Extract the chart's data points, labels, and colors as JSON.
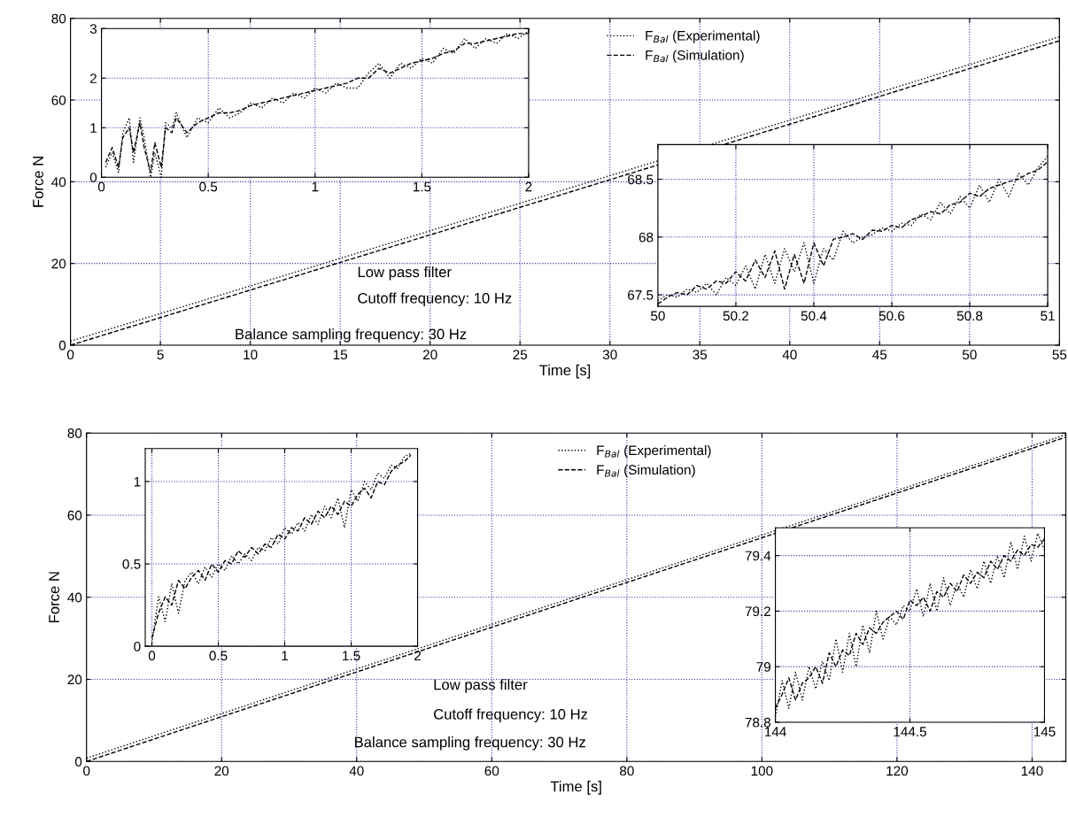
{
  "chart_data": [
    {
      "type": "line",
      "xlabel": "Time [s]",
      "ylabel": "Force N",
      "xlim": [
        0,
        55
      ],
      "ylim": [
        0,
        80
      ],
      "xticks": [
        0,
        5,
        10,
        15,
        20,
        25,
        30,
        35,
        40,
        45,
        50,
        55
      ],
      "yticks": [
        0,
        20,
        40,
        60,
        80
      ],
      "grid": true,
      "legend": "top",
      "x": [
        0,
        30,
        55
      ],
      "series": [
        {
          "name": "F$_{Bal}$ (Experimental)",
          "color": "#000000",
          "line_style": "dotted",
          "values": [
            1,
            41.5,
            75.5
          ]
        },
        {
          "name": "F$_{Bal}$ (Simulation)",
          "color": "#000000",
          "line_style": "dashed",
          "values": [
            0,
            40.5,
            74.5
          ]
        }
      ],
      "annotations": [
        "Low pass filter",
        "Cutoff frequency: 10 Hz",
        "Balance sampling frequency: 30 Hz"
      ]
    },
    {
      "type": "line",
      "xlim": [
        0,
        2
      ],
      "ylim": [
        0,
        3
      ],
      "xticks": [
        0,
        0.5,
        1,
        1.5,
        2
      ],
      "yticks": [
        0,
        1,
        2,
        3
      ],
      "grid": true,
      "x": [
        0.02,
        0.05,
        0.08,
        0.1,
        0.13,
        0.15,
        0.18,
        0.2,
        0.23,
        0.25,
        0.28,
        0.3,
        0.33,
        0.35,
        0.4,
        0.45,
        0.5,
        0.55,
        0.6,
        0.65,
        0.7,
        0.75,
        0.8,
        0.85,
        0.9,
        0.95,
        1.0,
        1.05,
        1.1,
        1.15,
        1.2,
        1.25,
        1.3,
        1.35,
        1.4,
        1.45,
        1.5,
        1.55,
        1.6,
        1.65,
        1.7,
        1.75,
        1.8,
        1.85,
        1.9,
        1.95,
        2.0
      ],
      "series": [
        {
          "color": "#000000",
          "line_style": "dotted",
          "values": [
            0.2,
            0.5,
            0.1,
            0.9,
            1.2,
            0.3,
            1.2,
            0.8,
            0.0,
            0.5,
            0.0,
            1.1,
            1.0,
            1.3,
            0.8,
            1.2,
            1.1,
            1.4,
            1.2,
            1.3,
            1.5,
            1.4,
            1.6,
            1.5,
            1.7,
            1.6,
            1.8,
            1.7,
            1.9,
            1.8,
            1.8,
            2.1,
            2.3,
            2.0,
            2.3,
            2.2,
            2.4,
            2.3,
            2.6,
            2.5,
            2.8,
            2.6,
            2.8,
            2.7,
            2.9,
            2.8,
            2.95
          ]
        },
        {
          "color": "#000000",
          "line_style": "dashed",
          "values": [
            0.3,
            0.6,
            0.2,
            0.8,
            1.0,
            0.5,
            1.1,
            0.6,
            0.1,
            0.7,
            0.2,
            1.0,
            0.9,
            1.2,
            0.9,
            1.1,
            1.2,
            1.3,
            1.3,
            1.35,
            1.45,
            1.5,
            1.55,
            1.6,
            1.65,
            1.7,
            1.75,
            1.8,
            1.85,
            1.9,
            2.0,
            2.0,
            2.2,
            2.1,
            2.2,
            2.3,
            2.35,
            2.4,
            2.5,
            2.55,
            2.7,
            2.7,
            2.75,
            2.8,
            2.85,
            2.9,
            2.9
          ]
        }
      ]
    },
    {
      "type": "line",
      "xlim": [
        50,
        51
      ],
      "ylim": [
        67.4,
        68.8
      ],
      "xticks": [
        50,
        50.2,
        50.4,
        50.6,
        50.8,
        51
      ],
      "yticks": [
        67.5,
        68,
        68.5
      ],
      "grid": true,
      "x": [
        50,
        50.025,
        50.05,
        50.075,
        50.1,
        50.125,
        50.15,
        50.175,
        50.2,
        50.225,
        50.25,
        50.275,
        50.3,
        50.325,
        50.35,
        50.375,
        50.4,
        50.425,
        50.45,
        50.475,
        50.5,
        50.525,
        50.55,
        50.575,
        50.6,
        50.625,
        50.65,
        50.675,
        50.7,
        50.725,
        50.75,
        50.775,
        50.8,
        50.825,
        50.85,
        50.875,
        50.9,
        50.925,
        50.95,
        50.975,
        51
      ],
      "series": [
        {
          "color": "#000000",
          "line_style": "dotted",
          "values": [
            67.45,
            67.5,
            67.48,
            67.55,
            67.52,
            67.6,
            67.5,
            67.65,
            67.58,
            67.75,
            67.55,
            67.85,
            67.6,
            67.9,
            67.7,
            67.95,
            67.6,
            67.9,
            67.8,
            68.05,
            67.95,
            68.0,
            68.02,
            68.08,
            68.05,
            68.12,
            68.1,
            68.2,
            68.15,
            68.3,
            68.2,
            68.35,
            68.25,
            68.45,
            68.3,
            68.5,
            68.35,
            68.55,
            68.45,
            68.6,
            68.7
          ]
        },
        {
          "color": "#000000",
          "line_style": "dashed",
          "values": [
            67.42,
            67.48,
            67.52,
            67.5,
            67.58,
            67.55,
            67.62,
            67.6,
            67.7,
            67.62,
            67.8,
            67.65,
            67.88,
            67.55,
            67.85,
            67.6,
            67.95,
            67.75,
            67.98,
            68.0,
            68.03,
            67.98,
            68.06,
            68.05,
            68.1,
            68.08,
            68.15,
            68.18,
            68.22,
            68.2,
            68.28,
            68.3,
            68.38,
            68.35,
            68.42,
            68.45,
            68.48,
            68.5,
            68.55,
            68.58,
            68.65
          ]
        }
      ]
    },
    {
      "type": "line",
      "xlabel": "Time [s]",
      "ylabel": "Force N",
      "xlim": [
        0,
        145
      ],
      "ylim": [
        0,
        80
      ],
      "xticks": [
        0,
        20,
        40,
        60,
        80,
        100,
        120,
        140
      ],
      "yticks": [
        0,
        20,
        40,
        60,
        80
      ],
      "grid": true,
      "legend": "top",
      "x": [
        0,
        145
      ],
      "series": [
        {
          "name": "F$_{Bal}$ (Experimental)",
          "color": "#000000",
          "line_style": "dotted",
          "values": [
            0.8,
            79.6
          ]
        },
        {
          "name": "F$_{Bal}$ (Simulation)",
          "color": "#000000",
          "line_style": "dashed",
          "values": [
            0,
            79
          ]
        }
      ],
      "annotations": [
        "Low pass filter",
        "Cutoff frequency: 10 Hz",
        "Balance sampling frequency: 30 Hz"
      ]
    },
    {
      "type": "line",
      "xlim": [
        -0.05,
        2
      ],
      "ylim": [
        0,
        1.2
      ],
      "xticks": [
        0,
        0.5,
        1,
        1.5,
        2
      ],
      "yticks": [
        0,
        0.5,
        1
      ],
      "grid": true,
      "x": [
        0,
        0.05,
        0.1,
        0.15,
        0.2,
        0.25,
        0.3,
        0.35,
        0.4,
        0.45,
        0.5,
        0.55,
        0.6,
        0.65,
        0.7,
        0.75,
        0.8,
        0.85,
        0.9,
        0.95,
        1.0,
        1.05,
        1.1,
        1.15,
        1.2,
        1.25,
        1.3,
        1.35,
        1.4,
        1.45,
        1.5,
        1.55,
        1.6,
        1.65,
        1.7,
        1.75,
        1.8,
        1.85,
        1.9,
        1.95
      ],
      "series": [
        {
          "color": "#000000",
          "line_style": "dotted",
          "values": [
            0.02,
            0.3,
            0.15,
            0.38,
            0.2,
            0.4,
            0.45,
            0.38,
            0.48,
            0.42,
            0.5,
            0.46,
            0.55,
            0.5,
            0.56,
            0.52,
            0.6,
            0.58,
            0.66,
            0.62,
            0.72,
            0.68,
            0.75,
            0.7,
            0.8,
            0.74,
            0.85,
            0.78,
            0.9,
            0.72,
            0.95,
            0.88,
            1.0,
            0.95,
            1.05,
            1.02,
            1.1,
            1.08,
            1.15,
            1.17
          ]
        },
        {
          "color": "#000000",
          "line_style": "dashed",
          "values": [
            0.05,
            0.2,
            0.3,
            0.25,
            0.4,
            0.35,
            0.42,
            0.46,
            0.4,
            0.5,
            0.45,
            0.52,
            0.5,
            0.58,
            0.54,
            0.6,
            0.56,
            0.62,
            0.6,
            0.68,
            0.65,
            0.72,
            0.7,
            0.78,
            0.74,
            0.82,
            0.78,
            0.85,
            0.8,
            0.88,
            0.85,
            0.92,
            0.96,
            0.9,
            1.0,
            0.98,
            1.06,
            1.1,
            1.12,
            1.16
          ]
        }
      ]
    },
    {
      "type": "line",
      "xlim": [
        144,
        145
      ],
      "ylim": [
        78.8,
        79.5
      ],
      "xticks": [
        144,
        144.5,
        145
      ],
      "yticks": [
        78.8,
        79,
        79.2,
        79.4
      ],
      "grid": true,
      "x": [
        144,
        144.025,
        144.05,
        144.075,
        144.1,
        144.125,
        144.15,
        144.175,
        144.2,
        144.225,
        144.25,
        144.275,
        144.3,
        144.325,
        144.35,
        144.375,
        144.4,
        144.425,
        144.45,
        144.475,
        144.5,
        144.525,
        144.55,
        144.575,
        144.6,
        144.625,
        144.65,
        144.675,
        144.7,
        144.725,
        144.75,
        144.775,
        144.8,
        144.825,
        144.85,
        144.875,
        144.9,
        144.925,
        144.95,
        144.975,
        145
      ],
      "series": [
        {
          "color": "#000000",
          "line_style": "dotted",
          "values": [
            78.82,
            78.95,
            78.85,
            78.98,
            78.88,
            79.0,
            78.92,
            79.02,
            78.95,
            79.1,
            78.98,
            79.12,
            79.0,
            79.15,
            79.05,
            79.2,
            79.1,
            79.18,
            79.15,
            79.22,
            79.2,
            79.28,
            79.18,
            79.3,
            79.2,
            79.32,
            79.22,
            79.3,
            79.25,
            79.35,
            79.28,
            79.38,
            79.3,
            79.4,
            79.32,
            79.45,
            79.35,
            79.47,
            79.38,
            79.48,
            79.42
          ]
        },
        {
          "color": "#000000",
          "line_style": "dashed",
          "values": [
            78.85,
            78.9,
            78.96,
            78.88,
            78.94,
            78.96,
            79.0,
            78.94,
            79.05,
            79.0,
            79.06,
            79.04,
            79.12,
            79.08,
            79.14,
            79.12,
            79.16,
            79.18,
            79.2,
            79.17,
            79.24,
            79.22,
            79.25,
            79.2,
            79.27,
            79.25,
            79.3,
            79.27,
            79.33,
            79.3,
            79.34,
            79.32,
            79.38,
            79.35,
            79.4,
            79.38,
            79.42,
            79.4,
            79.44,
            79.43,
            79.46
          ]
        }
      ]
    }
  ]
}
